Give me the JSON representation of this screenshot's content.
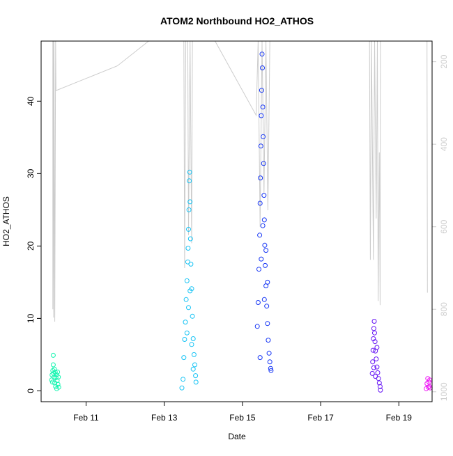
{
  "chart_data": {
    "type": "scatter",
    "title": "ATOM2 Northbound HO2_ATHOS",
    "xlabel": "Date",
    "ylabel": "HO2_ATHOS",
    "x_ticks": [
      "Feb 11",
      "Feb 13",
      "Feb 15",
      "Feb 17",
      "Feb 19"
    ],
    "x_tick_values": [
      2.0,
      4.0,
      6.0,
      8.0,
      10.0
    ],
    "x_range": [
      0.85,
      10.85
    ],
    "ylim": [
      -1.5,
      48.3
    ],
    "y_ticks": [
      0,
      10,
      20,
      30,
      40
    ],
    "right_axis": {
      "ticks": [
        200,
        400,
        600,
        800,
        1000
      ],
      "range": [
        1024,
        150
      ],
      "color": "#cccccc"
    },
    "grid": false,
    "legend": "none",
    "series": [
      {
        "color": "#14f5b0",
        "points": [
          [
            1.12,
            1.5
          ],
          [
            1.13,
            2.2
          ],
          [
            1.14,
            1.2
          ],
          [
            1.15,
            2.8
          ],
          [
            1.16,
            4.9
          ],
          [
            1.16,
            3.6
          ],
          [
            1.17,
            2.4
          ],
          [
            1.18,
            1.9
          ],
          [
            1.19,
            3.0
          ],
          [
            1.2,
            1.1
          ],
          [
            1.21,
            2.6
          ],
          [
            1.22,
            0.6
          ],
          [
            1.23,
            1.8
          ],
          [
            1.24,
            2.2
          ],
          [
            1.25,
            0.3
          ],
          [
            1.26,
            1.4
          ],
          [
            1.27,
            2.6
          ],
          [
            1.28,
            0.9
          ],
          [
            1.29,
            1.9
          ],
          [
            1.3,
            0.5
          ]
        ]
      },
      {
        "color": "#14c3f5",
        "points": [
          [
            4.45,
            0.4
          ],
          [
            4.48,
            1.6
          ],
          [
            4.5,
            4.6
          ],
          [
            4.52,
            7.1
          ],
          [
            4.54,
            9.5
          ],
          [
            4.56,
            12.6
          ],
          [
            4.58,
            15.2
          ],
          [
            4.6,
            17.8
          ],
          [
            4.61,
            19.7
          ],
          [
            4.62,
            22.3
          ],
          [
            4.63,
            25.0
          ],
          [
            4.64,
            29.0
          ],
          [
            4.65,
            30.2
          ],
          [
            4.66,
            26.1
          ],
          [
            4.67,
            21.0
          ],
          [
            4.68,
            17.5
          ],
          [
            4.7,
            14.1
          ],
          [
            4.72,
            10.3
          ],
          [
            4.74,
            7.2
          ],
          [
            4.76,
            5.0
          ],
          [
            4.78,
            3.6
          ],
          [
            4.8,
            2.1
          ],
          [
            4.81,
            1.2
          ],
          [
            4.58,
            8.0
          ],
          [
            4.62,
            11.5
          ],
          [
            4.66,
            13.8
          ],
          [
            4.7,
            6.4
          ],
          [
            4.74,
            3.0
          ]
        ]
      },
      {
        "color": "#1434f5",
        "points": [
          [
            6.38,
            8.9
          ],
          [
            6.4,
            12.2
          ],
          [
            6.42,
            16.8
          ],
          [
            6.44,
            21.5
          ],
          [
            6.45,
            25.9
          ],
          [
            6.46,
            29.4
          ],
          [
            6.47,
            33.8
          ],
          [
            6.48,
            38.0
          ],
          [
            6.49,
            41.5
          ],
          [
            6.5,
            46.5
          ],
          [
            6.51,
            44.6
          ],
          [
            6.52,
            39.2
          ],
          [
            6.53,
            35.1
          ],
          [
            6.54,
            31.4
          ],
          [
            6.55,
            27.0
          ],
          [
            6.56,
            23.6
          ],
          [
            6.57,
            20.1
          ],
          [
            6.58,
            17.3
          ],
          [
            6.6,
            14.5
          ],
          [
            6.62,
            11.7
          ],
          [
            6.64,
            9.3
          ],
          [
            6.66,
            7.0
          ],
          [
            6.68,
            5.2
          ],
          [
            6.7,
            4.0
          ],
          [
            6.72,
            3.1
          ],
          [
            6.73,
            2.8
          ],
          [
            6.45,
            4.6
          ],
          [
            6.48,
            18.2
          ],
          [
            6.52,
            22.8
          ],
          [
            6.56,
            12.6
          ],
          [
            6.6,
            19.4
          ],
          [
            6.64,
            15.0
          ]
        ]
      },
      {
        "color": "#6614f5",
        "points": [
          [
            9.32,
            2.4
          ],
          [
            9.33,
            4.0
          ],
          [
            9.34,
            5.6
          ],
          [
            9.35,
            7.2
          ],
          [
            9.36,
            8.6
          ],
          [
            9.37,
            9.6
          ],
          [
            9.38,
            8.0
          ],
          [
            9.39,
            6.8
          ],
          [
            9.4,
            5.5
          ],
          [
            9.42,
            4.4
          ],
          [
            9.44,
            3.3
          ],
          [
            9.46,
            2.5
          ],
          [
            9.48,
            1.7
          ],
          [
            9.5,
            1.1
          ],
          [
            9.52,
            0.6
          ],
          [
            9.53,
            0.1
          ],
          [
            9.36,
            3.2
          ],
          [
            9.4,
            2.0
          ],
          [
            9.44,
            6.0
          ]
        ]
      },
      {
        "color": "#ed14f5",
        "points": [
          [
            10.7,
            0.3
          ],
          [
            10.72,
            1.0
          ],
          [
            10.74,
            1.7
          ],
          [
            10.75,
            0.5
          ],
          [
            10.77,
            1.2
          ],
          [
            10.78,
            0.6
          ],
          [
            10.79,
            1.5
          ],
          [
            10.8,
            0.4
          ]
        ]
      }
    ],
    "pressure_trace": {
      "color": "#cccccc",
      "points": [
        [
          1.15,
          150
        ],
        [
          1.15,
          800
        ],
        [
          1.16,
          150
        ],
        [
          1.17,
          820
        ],
        [
          1.18,
          150
        ],
        [
          1.2,
          830
        ],
        [
          1.22,
          150
        ],
        [
          1.23,
          270
        ],
        [
          2.8,
          210
        ],
        [
          3.6,
          150
        ],
        [
          4.5,
          150
        ],
        [
          4.52,
          700
        ],
        [
          4.55,
          150
        ],
        [
          4.6,
          150
        ],
        [
          4.62,
          620
        ],
        [
          4.66,
          150
        ],
        [
          4.7,
          640
        ],
        [
          4.72,
          150
        ],
        [
          5.3,
          150
        ],
        [
          6.35,
          330
        ],
        [
          6.4,
          150
        ],
        [
          6.45,
          600
        ],
        [
          6.5,
          150
        ],
        [
          6.55,
          520
        ],
        [
          6.6,
          150
        ],
        [
          6.65,
          560
        ],
        [
          6.7,
          150
        ],
        [
          9.25,
          150
        ],
        [
          9.27,
          680
        ],
        [
          9.3,
          150
        ],
        [
          9.35,
          680
        ],
        [
          9.38,
          150
        ],
        [
          9.42,
          580
        ],
        [
          9.45,
          150
        ],
        [
          9.47,
          780
        ],
        [
          9.5,
          420
        ],
        [
          9.52,
          790
        ],
        [
          9.53,
          150
        ],
        [
          10.72,
          150
        ],
        [
          10.73,
          760
        ]
      ]
    }
  }
}
